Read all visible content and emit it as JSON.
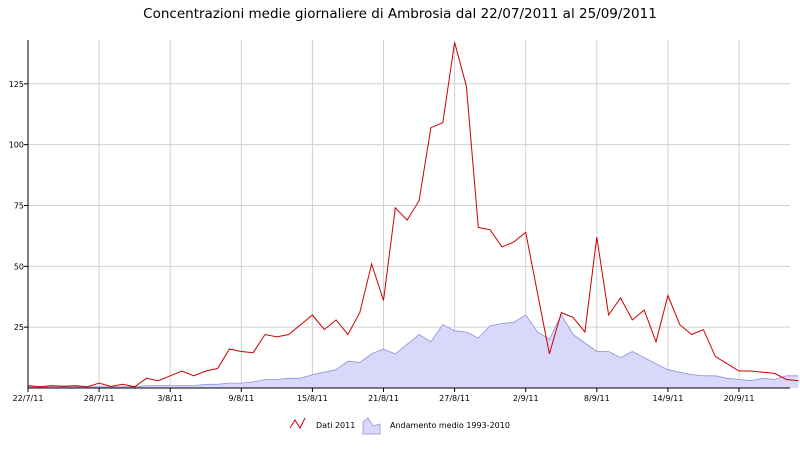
{
  "chart_data": {
    "type": "line",
    "title": "Concentrazioni medie giornaliere di Ambrosia dal 22/07/2011 al 25/09/2011",
    "xlabel": "",
    "ylabel": "",
    "x_range": [
      "22/7/11",
      "25/9/11"
    ],
    "ylim": [
      0,
      143
    ],
    "yticks": [
      25,
      50,
      75,
      100,
      125
    ],
    "ytick_labels": [
      "25",
      "50",
      "75",
      "100",
      "125"
    ],
    "xtick_labels": [
      "22/7/11",
      "28/7/11",
      "3/8/11",
      "9/8/11",
      "15/8/11",
      "21/8/11",
      "27/8/11",
      "2/9/11",
      "8/9/11",
      "14/9/11",
      "20/9/11"
    ],
    "xtick_days": [
      0,
      6,
      12,
      18,
      24,
      30,
      36,
      42,
      48,
      54,
      60
    ],
    "grid": true,
    "legend_position": "bottom",
    "colors": {
      "line": "#cc0000",
      "area_fill": "#d8d8fb",
      "area_stroke": "#8f8fe0",
      "grid": "#d0d0d0",
      "axis": "#000000"
    },
    "series": [
      {
        "name": "Dati 2011",
        "style": "line",
        "values": [
          1,
          0.5,
          1,
          0.7,
          1,
          0.5,
          2,
          0.6,
          1.5,
          0.5,
          4,
          3,
          5,
          7,
          5,
          7,
          8,
          16,
          15,
          14.5,
          22,
          21,
          22,
          26,
          30,
          24,
          28,
          22,
          31,
          51,
          36,
          74,
          69,
          77,
          107,
          109,
          142,
          124,
          66,
          65,
          58,
          60,
          64,
          39,
          14,
          31,
          29,
          23,
          62,
          30,
          37,
          28,
          32,
          19,
          38,
          26,
          22,
          24,
          13,
          10,
          7,
          7,
          6.5,
          6,
          3.5,
          3
        ]
      },
      {
        "name": "Andamento medio 1993-2010",
        "style": "area",
        "values": [
          0.5,
          0.5,
          0.5,
          0.5,
          0.5,
          0.5,
          0.5,
          0.5,
          0.5,
          0.5,
          1,
          1,
          1,
          1,
          1,
          1.5,
          1.5,
          2,
          2,
          2.5,
          3.5,
          3.5,
          4,
          4,
          5.5,
          6.5,
          7.5,
          11,
          10.5,
          14,
          16,
          14,
          18,
          22,
          19,
          26,
          23.5,
          23,
          20.5,
          25.5,
          26.5,
          27,
          30,
          23,
          20,
          30,
          22,
          18.5,
          15,
          15,
          12.5,
          15,
          12.5,
          10,
          7.5,
          6.5,
          5.5,
          5,
          5,
          4,
          3.5,
          3,
          4,
          3.5,
          5,
          5
        ]
      }
    ]
  }
}
